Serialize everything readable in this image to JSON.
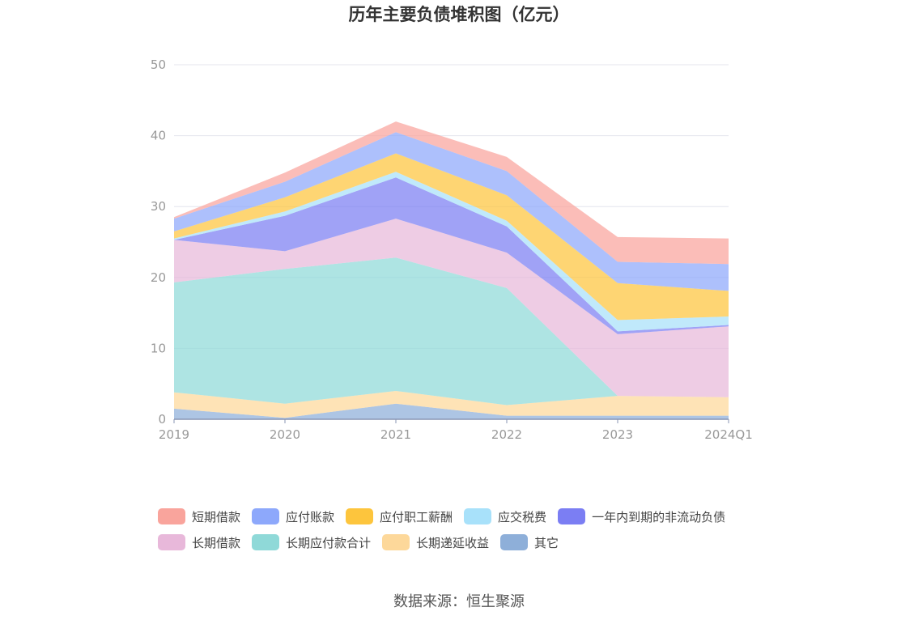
{
  "chart_data": {
    "type": "area",
    "stacked": true,
    "title": "历年主要负债堆积图（亿元）",
    "x": [
      "2019",
      "2020",
      "2021",
      "2022",
      "2023",
      "2024Q1"
    ],
    "ylim": [
      0,
      50
    ],
    "yticks": [
      "0",
      "10",
      "20",
      "30",
      "40",
      "50"
    ],
    "grid": true,
    "legend_position": "bottom",
    "series": [
      {
        "name": "其它",
        "color": "#8eafd9",
        "values": [
          1.5,
          0.2,
          2.2,
          0.5,
          0.5,
          0.5
        ]
      },
      {
        "name": "长期递延收益",
        "color": "#fdd89a",
        "values": [
          2.3,
          2.0,
          1.8,
          1.5,
          2.8,
          2.6
        ]
      },
      {
        "name": "长期应付款合计",
        "color": "#8fd9d8",
        "values": [
          15.5,
          19.0,
          18.8,
          16.5,
          0.0,
          0.0
        ]
      },
      {
        "name": "长期借款",
        "color": "#e8b8da",
        "values": [
          6.0,
          2.5,
          5.5,
          5.0,
          8.7,
          10.0
        ]
      },
      {
        "name": "一年内到期的非流动负债",
        "color": "#7b7ef3",
        "values": [
          0.0,
          5.0,
          5.8,
          3.7,
          0.4,
          0.2
        ]
      },
      {
        "name": "应交税费",
        "color": "#a8e1fa",
        "values": [
          0.2,
          0.6,
          0.8,
          0.8,
          1.6,
          1.2
        ]
      },
      {
        "name": "应付职工薪酬",
        "color": "#fdc53d",
        "values": [
          1.0,
          2.0,
          2.6,
          3.6,
          5.2,
          3.6
        ]
      },
      {
        "name": "应付账款",
        "color": "#8da8fb",
        "values": [
          1.8,
          2.2,
          3.0,
          3.4,
          3.0,
          3.8
        ]
      },
      {
        "name": "短期借款",
        "color": "#f9a49c",
        "values": [
          0.2,
          1.3,
          1.5,
          2.0,
          3.5,
          3.6
        ]
      }
    ],
    "legend_order": [
      "短期借款",
      "应付账款",
      "应付职工薪酬",
      "应交税费",
      "一年内到期的非流动负债",
      "长期借款",
      "长期应付款合计",
      "长期递延收益",
      "其它"
    ]
  },
  "footer": {
    "source": "数据来源：恒生聚源"
  }
}
